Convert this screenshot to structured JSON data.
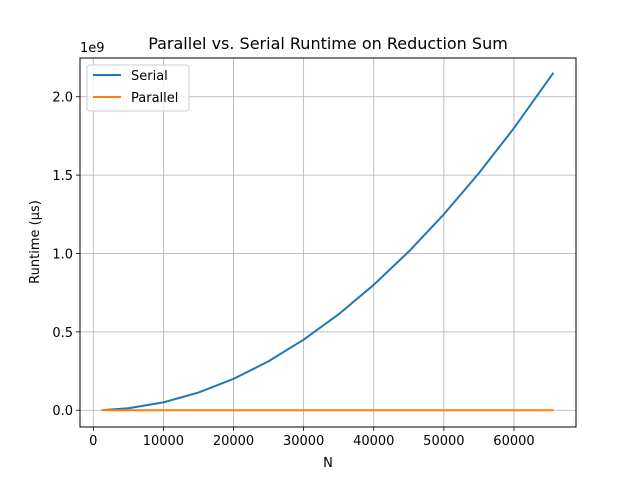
{
  "chart_data": {
    "type": "line",
    "title": "Parallel vs. Serial Runtime on Reduction Sum",
    "xlabel": "N",
    "ylabel": "Runtime (µs)",
    "y_offset_label": "1e9",
    "xlim": [
      -1895,
      68845
    ],
    "ylim": [
      -0.107,
      2.247
    ],
    "x_ticks": [
      0,
      10000,
      20000,
      30000,
      40000,
      50000,
      60000
    ],
    "x_tick_labels": [
      "0",
      "10000",
      "20000",
      "30000",
      "40000",
      "50000",
      "60000"
    ],
    "y_ticks": [
      0.0,
      0.5,
      1.0,
      1.5,
      2.0
    ],
    "y_tick_labels": [
      "0.0",
      "0.5",
      "1.0",
      "1.5",
      "2.0"
    ],
    "grid": true,
    "legend_position": "upper-left",
    "series": [
      {
        "name": "Serial",
        "color": "#1f77b4",
        "x": [
          1320,
          5000,
          10000,
          15000,
          20000,
          25000,
          30000,
          35000,
          40000,
          45000,
          50000,
          55000,
          60000,
          65536
        ],
        "y": [
          0.0009,
          0.0125,
          0.05,
          0.1125,
          0.2,
          0.3125,
          0.45,
          0.6125,
          0.8,
          1.0125,
          1.25,
          1.5125,
          1.8,
          2.1475
        ]
      },
      {
        "name": "Parallel",
        "color": "#ff7f0e",
        "x": [
          1320,
          5000,
          10000,
          20000,
          30000,
          40000,
          50000,
          60000,
          65536
        ],
        "y": [
          0.0,
          0.0,
          0.0,
          0.0,
          0.0,
          0.0,
          0.0,
          0.0,
          0.0
        ]
      }
    ]
  }
}
